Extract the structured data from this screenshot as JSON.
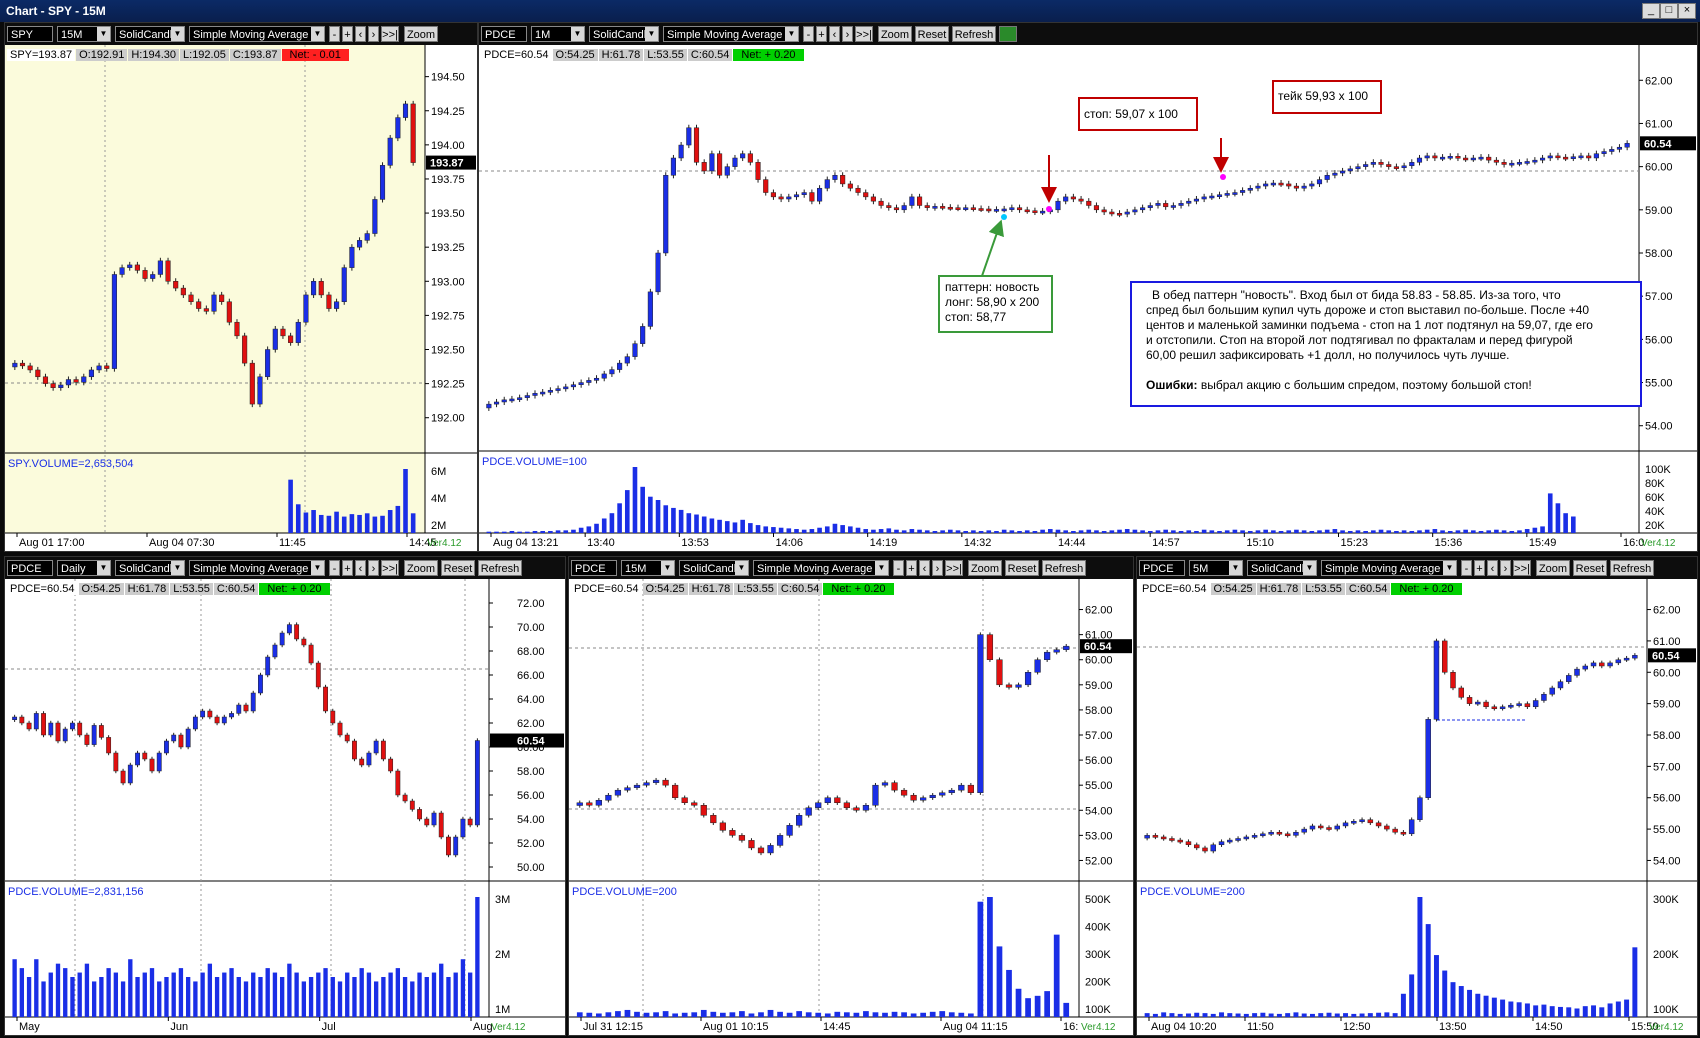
{
  "window": {
    "title": "Chart - SPY - 15M",
    "min": "_",
    "max": "□",
    "close": "×"
  },
  "toolbar_labels": {
    "zoom": "Zoom",
    "reset": "Reset",
    "refresh": "Refresh",
    "dd_arrow": "▼",
    "minus": "-",
    "plus": "+",
    "left": "‹",
    "right": "›",
    "end": ">>|"
  },
  "colors": {
    "up": "#1a2ee6",
    "down": "#e01010",
    "spy_bg": "#fbfbdc",
    "net_neg": "#ff2020",
    "net_pos": "#00d000"
  },
  "version": "Ver4.12",
  "panels": [
    {
      "id": "spy",
      "toolbar": {
        "symbol": "SPY",
        "interval": "15M",
        "style": "SolidCandle",
        "indicator": "Simple Moving Average",
        "buttons": [
          "Zoom"
        ]
      },
      "info": {
        "label": "SPY=193.87",
        "o": "O:192.91",
        "h": "H:194.30",
        "l": "L:192.05",
        "c": "C:193.87",
        "net": "Net: - 0.01"
      },
      "volume_label": "SPY.VOLUME=2,653,504",
      "price_labels": [
        "194.50",
        "194.25",
        "194.00",
        "193.75",
        "193.50",
        "193.25",
        "193.00",
        "192.75",
        "192.50",
        "192.25",
        "192.00"
      ],
      "last_price": "193.87",
      "volume_labels": [
        "6M",
        "4M",
        "2M"
      ],
      "time_labels": [
        "Aug 01 17:00",
        "Aug 04 07:30",
        "11:45",
        "14:45"
      ]
    },
    {
      "id": "pdce1m",
      "toolbar": {
        "symbol": "PDCE",
        "interval": "1M",
        "style": "SolidCandle",
        "indicator": "Simple Moving Average",
        "buttons": [
          "Zoom",
          "Reset",
          "Refresh"
        ]
      },
      "info": {
        "label": "PDCE=60.54",
        "o": "O:54.25",
        "h": "H:61.78",
        "l": "L:53.55",
        "c": "C:60.54",
        "net": "Net: + 0.20"
      },
      "volume_label": "PDCE.VOLUME=100",
      "price_labels": [
        "62.00",
        "61.00",
        "60.00",
        "59.00",
        "58.00",
        "57.00",
        "56.00",
        "55.00",
        "54.00"
      ],
      "last_price": "60.54",
      "volume_labels": [
        "100K",
        "80K",
        "60K",
        "40K",
        "20K"
      ],
      "time_labels": [
        "Aug 04 13:21",
        "13:40",
        "13:53",
        "14:06",
        "14:19",
        "14:32",
        "14:44",
        "14:57",
        "15:10",
        "15:23",
        "15:36",
        "15:49",
        "16:0"
      ]
    },
    {
      "id": "pdcedaily",
      "toolbar": {
        "symbol": "PDCE",
        "interval": "Daily",
        "style": "SolidCandle",
        "indicator": "Simple Moving Average",
        "buttons": [
          "Zoom",
          "Reset",
          "Refresh"
        ]
      },
      "info": {
        "label": "PDCE=60.54",
        "o": "O:54.25",
        "h": "H:61.78",
        "l": "L:53.55",
        "c": "C:60.54",
        "net": "Net: + 0.20"
      },
      "volume_label": "PDCE.VOLUME=2,831,156",
      "price_labels": [
        "72.00",
        "70.00",
        "68.00",
        "66.00",
        "64.00",
        "62.00",
        "60.00",
        "58.00",
        "56.00",
        "54.00",
        "52.00",
        "50.00"
      ],
      "last_price": "60.54",
      "volume_labels": [
        "3M",
        "2M",
        "1M"
      ],
      "time_labels": [
        "May",
        "Jun",
        "Jul",
        "Aug"
      ]
    },
    {
      "id": "pdce15m",
      "toolbar": {
        "symbol": "PDCE",
        "interval": "15M",
        "style": "SolidCandle",
        "indicator": "Simple Moving Average",
        "buttons": [
          "Zoom",
          "Reset",
          "Refresh"
        ]
      },
      "info": {
        "label": "PDCE=60.54",
        "o": "O:54.25",
        "h": "H:61.78",
        "l": "L:53.55",
        "c": "C:60.54",
        "net": "Net: + 0.20"
      },
      "volume_label": "PDCE.VOLUME=200",
      "price_labels": [
        "62.00",
        "61.00",
        "60.00",
        "59.00",
        "58.00",
        "57.00",
        "56.00",
        "55.00",
        "54.00",
        "53.00",
        "52.00"
      ],
      "last_price": "60.54",
      "volume_labels": [
        "500K",
        "400K",
        "300K",
        "200K",
        "100K"
      ],
      "time_labels": [
        "Jul 31 12:15",
        "Aug 01 10:15",
        "14:45",
        "Aug 04 11:15",
        "16:"
      ]
    },
    {
      "id": "pdce5m",
      "toolbar": {
        "symbol": "PDCE",
        "interval": "5M",
        "style": "SolidCandle",
        "indicator": "Simple Moving Average",
        "buttons": [
          "Zoom",
          "Reset",
          "Refresh"
        ]
      },
      "info": {
        "label": "PDCE=60.54",
        "o": "O:54.25",
        "h": "H:61.78",
        "l": "L:53.55",
        "c": "C:60.54",
        "net": "Net: + 0.20"
      },
      "volume_label": "PDCE.VOLUME=200",
      "price_labels": [
        "62.00",
        "61.00",
        "60.00",
        "59.00",
        "58.00",
        "57.00",
        "56.00",
        "55.00",
        "54.00"
      ],
      "last_price": "60.54",
      "volume_labels": [
        "300K",
        "200K",
        "100K"
      ],
      "time_labels": [
        "Aug 04 10:20",
        "11:50",
        "12:50",
        "13:50",
        "14:50",
        "15:50"
      ]
    }
  ],
  "annotations": {
    "stop": "стоп: 59,07 x 100",
    "take": "тейк 59,93 x 100",
    "pattern": [
      "паттерн: новость",
      "лонг: 58,90 x 200",
      "стоп: 58,77"
    ],
    "comment": [
      "В обед паттерн \"новость\". Вход был от бида 58.83 - 58.85. Из-за того, что",
      "спред был большим купил чуть дороже и стоп выставил по-больше. После +40",
      "центов и маленькой заминки подъема - стоп на 1 лот подтянул на 59,07, где его",
      "и отстопили. Стоп на второй лот подтягивал по фракталам и перед фигурой",
      "60,00 решил зафиксировать +1 долл, но получилось чуть лучше."
    ],
    "errors_label": "Ошибки:",
    "errors_text": " выбрал акцию с большим спредом, поэтому большой стоп!"
  },
  "chart_data": [
    {
      "type": "candlestick",
      "id": "spy",
      "title": "SPY 15M",
      "ylim": [
        191.8,
        194.6
      ],
      "series": [
        {
          "name": "SPY",
          "close": [
            192.4,
            192.38,
            192.35,
            192.3,
            192.25,
            192.22,
            192.24,
            192.28,
            192.26,
            192.3,
            192.35,
            192.38,
            192.36,
            193.05,
            193.1,
            193.12,
            193.08,
            193.02,
            193.05,
            193.15,
            193.0,
            192.95,
            192.9,
            192.85,
            192.8,
            192.78,
            192.9,
            192.85,
            192.7,
            192.6,
            192.4,
            192.1,
            192.3,
            192.5,
            192.65,
            192.6,
            192.55,
            192.7,
            192.9,
            193.0,
            192.9,
            192.8,
            192.85,
            193.1,
            193.25,
            193.3,
            193.35,
            193.6,
            193.85,
            194.05,
            194.2,
            194.3,
            193.87
          ]
        }
      ],
      "volume": [
        0,
        0,
        0,
        0,
        0,
        0,
        0,
        0,
        0,
        0,
        0,
        0,
        0,
        0,
        0,
        0,
        0,
        0,
        0,
        0,
        0,
        0,
        0,
        0,
        0,
        0,
        0,
        0,
        0,
        0,
        0,
        0,
        0,
        0,
        0,
        0,
        6.5,
        3.5,
        2.5,
        2.8,
        2.2,
        2.1,
        2.6,
        2.0,
        2.3,
        2.2,
        2.4,
        2.0,
        2.1,
        2.8,
        3.3,
        7.8,
        2.4
      ]
    },
    {
      "type": "candlestick",
      "id": "pdce1m",
      "title": "PDCE 1M",
      "ylim": [
        53.6,
        62.4
      ],
      "series": [
        {
          "name": "PDCE",
          "close": [
            54.5,
            54.55,
            54.6,
            54.62,
            54.65,
            54.7,
            54.75,
            54.78,
            54.82,
            54.86,
            54.9,
            54.95,
            55.0,
            55.05,
            55.1,
            55.2,
            55.3,
            55.45,
            55.6,
            55.9,
            56.3,
            57.1,
            58.0,
            59.8,
            60.2,
            60.5,
            60.9,
            60.1,
            59.9,
            60.3,
            59.8,
            60.0,
            60.2,
            60.3,
            60.1,
            59.7,
            59.4,
            59.3,
            59.25,
            59.3,
            59.35,
            59.4,
            59.2,
            59.5,
            59.7,
            59.8,
            59.6,
            59.5,
            59.4,
            59.3,
            59.2,
            59.1,
            59.05,
            59.0,
            59.1,
            59.3,
            59.1,
            59.05,
            59.08,
            59.06,
            59.05,
            59.04,
            59.05,
            59.03,
            59.02,
            59.0,
            59.01,
            59.02,
            59.05,
            59.0,
            58.98,
            58.95,
            58.97,
            59.0,
            59.2,
            59.3,
            59.25,
            59.2,
            59.1,
            59.0,
            58.95,
            58.92,
            58.9,
            58.95,
            59.0,
            59.05,
            59.1,
            59.15,
            59.07,
            59.1,
            59.15,
            59.2,
            59.25,
            59.3,
            59.32,
            59.35,
            59.38,
            59.4,
            59.45,
            59.5,
            59.55,
            59.6,
            59.62,
            59.6,
            59.55,
            59.5,
            59.55,
            59.6,
            59.7,
            59.8,
            59.85,
            59.9,
            59.95,
            60.0,
            60.05,
            60.1,
            60.05,
            60.0,
            59.98,
            60.02,
            60.1,
            60.2,
            60.25,
            60.2,
            60.22,
            60.24,
            60.2,
            60.18,
            60.2,
            60.22,
            60.15,
            60.1,
            60.05,
            60.08,
            60.1,
            60.12,
            60.15,
            60.2,
            60.25,
            60.22,
            60.2,
            60.23,
            60.25,
            60.2,
            60.3,
            60.35,
            60.4,
            60.45,
            60.54
          ]
        }
      ],
      "volume": [
        2,
        2,
        2,
        3,
        2,
        2,
        3,
        3,
        3,
        4,
        4,
        5,
        8,
        10,
        14,
        22,
        30,
        45,
        65,
        100,
        70,
        55,
        50,
        42,
        38,
        35,
        30,
        28,
        25,
        22,
        20,
        18,
        16,
        20,
        15,
        12,
        10,
        9,
        8,
        7,
        6,
        5,
        6,
        8,
        10,
        14,
        12,
        10,
        8,
        6,
        5,
        6,
        7,
        5,
        4,
        6,
        5,
        4,
        3,
        4,
        5,
        4,
        3,
        4,
        3,
        4,
        3,
        5,
        4,
        3,
        4,
        3,
        5,
        6,
        5,
        4,
        3,
        4,
        5,
        4,
        3,
        4,
        5,
        6,
        5,
        4,
        3,
        4,
        5,
        4,
        3,
        4,
        3,
        5,
        4,
        3,
        4,
        5,
        4,
        3,
        4,
        5,
        4,
        3,
        4,
        5,
        4,
        3,
        4,
        5,
        6,
        4,
        3,
        4,
        3,
        4,
        5,
        4,
        3,
        4,
        3,
        4,
        5,
        6,
        4,
        3,
        4,
        5,
        4,
        3,
        4,
        5,
        4,
        3,
        4,
        6,
        8,
        10,
        60,
        45,
        30,
        25
      ]
    },
    {
      "type": "candlestick",
      "id": "pdcedaily",
      "title": "PDCE Daily",
      "ylim": [
        49.5,
        72.5
      ],
      "series": [
        {
          "name": "PDCE",
          "close": [
            62.5,
            62.0,
            61.5,
            62.8,
            61.0,
            62.0,
            60.5,
            61.5,
            62.0,
            61.0,
            60.2,
            61.8,
            60.8,
            59.5,
            58.0,
            57.0,
            58.5,
            59.5,
            59.0,
            58.0,
            59.5,
            60.5,
            61.0,
            60.0,
            61.5,
            62.5,
            63.0,
            62.5,
            62.0,
            62.5,
            62.8,
            63.5,
            63.0,
            64.5,
            66.0,
            67.5,
            68.5,
            69.5,
            70.2,
            69.0,
            68.5,
            67.0,
            65.0,
            63.0,
            62.0,
            61.0,
            60.5,
            59.0,
            58.5,
            59.5,
            60.5,
            59.0,
            58.0,
            56.0,
            55.5,
            54.8,
            54.0,
            53.5,
            54.5,
            52.5,
            51.0,
            52.5,
            54.0,
            53.5,
            60.54
          ]
        }
      ],
      "volume": [
        1.3,
        1.1,
        0.9,
        1.3,
        0.8,
        1.0,
        1.2,
        1.1,
        0.9,
        1.0,
        1.2,
        0.8,
        0.9,
        1.1,
        1.0,
        0.8,
        1.3,
        0.9,
        1.0,
        1.1,
        0.8,
        0.9,
        1.0,
        1.1,
        0.9,
        0.8,
        1.0,
        1.2,
        0.9,
        1.0,
        1.1,
        0.9,
        0.8,
        1.0,
        0.9,
        1.1,
        1.0,
        0.9,
        1.2,
        1.0,
        0.8,
        0.9,
        1.0,
        1.1,
        0.9,
        0.8,
        1.0,
        0.9,
        1.1,
        1.0,
        0.8,
        0.9,
        1.0,
        1.1,
        0.9,
        0.8,
        1.0,
        0.9,
        1.0,
        1.2,
        0.9,
        1.0,
        1.3,
        1.0,
        2.7
      ]
    },
    {
      "type": "candlestick",
      "id": "pdce15m",
      "title": "PDCE 15M",
      "ylim": [
        51.5,
        62.5
      ],
      "series": [
        {
          "name": "PDCE",
          "close": [
            54.3,
            54.2,
            54.4,
            54.6,
            54.8,
            54.9,
            55.0,
            55.1,
            55.2,
            55.0,
            54.5,
            54.3,
            54.2,
            53.8,
            53.5,
            53.2,
            53.0,
            52.8,
            52.5,
            52.3,
            52.6,
            53.0,
            53.4,
            53.8,
            54.1,
            54.3,
            54.5,
            54.3,
            54.1,
            54.0,
            54.2,
            55.0,
            55.1,
            54.8,
            54.6,
            54.4,
            54.5,
            54.6,
            54.7,
            54.8,
            55.0,
            54.7,
            61.0,
            60.0,
            59.0,
            58.9,
            59.0,
            59.5,
            60.0,
            60.3,
            60.4,
            60.54
          ]
        }
      ],
      "volume": [
        20,
        18,
        15,
        20,
        25,
        30,
        22,
        18,
        20,
        25,
        15,
        18,
        20,
        30,
        22,
        18,
        20,
        25,
        15,
        20,
        30,
        22,
        18,
        25,
        20,
        18,
        15,
        22,
        20,
        18,
        25,
        20,
        18,
        22,
        20,
        15,
        18,
        22,
        25,
        20,
        18,
        15,
        490,
        510,
        300,
        200,
        120,
        80,
        90,
        110,
        350,
        60
      ]
    },
    {
      "type": "candlestick",
      "id": "pdce5m",
      "title": "PDCE 5M",
      "ylim": [
        53.6,
        62.4
      ],
      "series": [
        {
          "name": "PDCE",
          "close": [
            54.8,
            54.75,
            54.7,
            54.65,
            54.6,
            54.5,
            54.4,
            54.3,
            54.5,
            54.6,
            54.65,
            54.7,
            54.75,
            54.8,
            54.85,
            54.9,
            54.85,
            54.8,
            54.9,
            55.0,
            55.1,
            55.05,
            55.0,
            55.1,
            55.2,
            55.25,
            55.3,
            55.2,
            55.1,
            55.0,
            54.9,
            54.85,
            55.3,
            56.0,
            58.5,
            61.0,
            60.0,
            59.5,
            59.2,
            59.0,
            59.05,
            58.9,
            58.85,
            58.9,
            58.95,
            59.0,
            58.9,
            59.1,
            59.3,
            59.5,
            59.7,
            59.9,
            60.1,
            60.2,
            60.3,
            60.2,
            60.3,
            60.4,
            60.45,
            60.54
          ]
        }
      ],
      "volume": [
        10,
        8,
        12,
        10,
        8,
        9,
        11,
        10,
        8,
        12,
        10,
        9,
        8,
        10,
        11,
        9,
        8,
        10,
        12,
        9,
        8,
        10,
        11,
        9,
        10,
        8,
        9,
        10,
        11,
        12,
        10,
        60,
        110,
        310,
        240,
        160,
        120,
        90,
        80,
        70,
        60,
        55,
        50,
        45,
        40,
        38,
        35,
        30,
        32,
        28,
        26,
        25,
        22,
        28,
        30,
        25,
        35,
        40,
        45,
        180
      ]
    }
  ]
}
